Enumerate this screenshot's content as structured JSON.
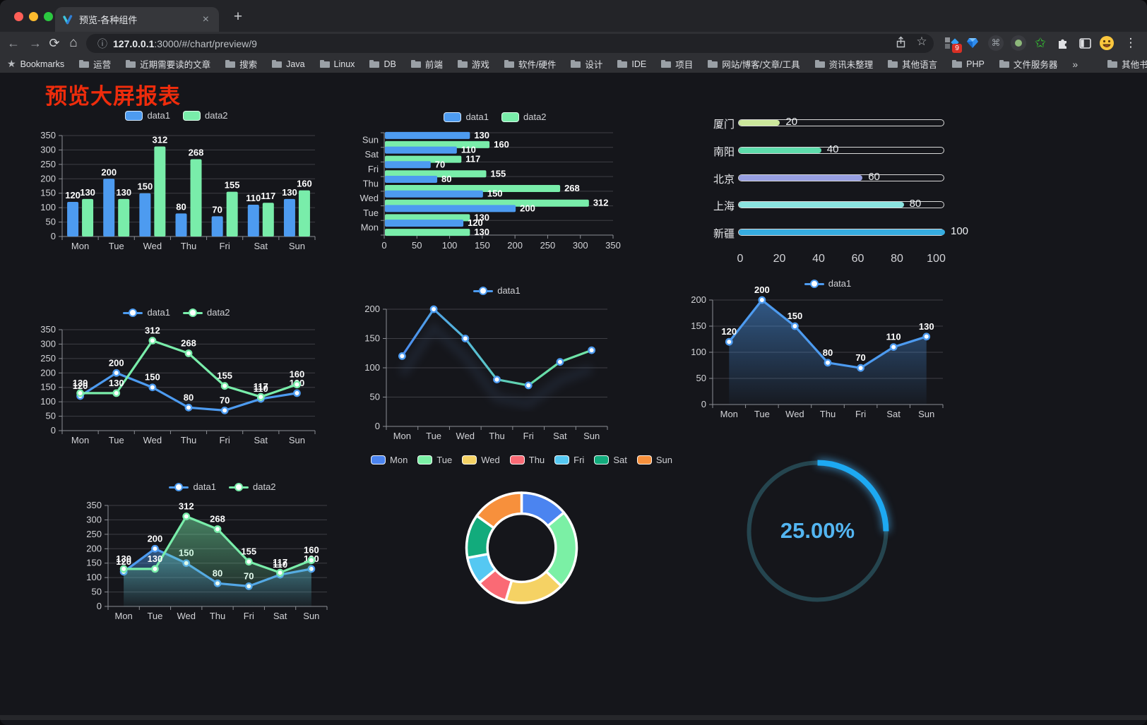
{
  "colors": {
    "data1_blue": "#4d9bf0",
    "data2_green": "#79edaa",
    "grid": "#3e3f45",
    "axis": "#8b8e94",
    "tick_label": "#d2d3d7",
    "value_label": "#ffffff",
    "title_red": "#ee2c0c",
    "gauge_track": "#25454f",
    "gauge_fill": "#1da9f2",
    "gauge_text": "#53b5f1"
  },
  "browser": {
    "tab_title": "预览-各种组件",
    "close_glyph": "×",
    "new_tab_glyph": "+",
    "back_glyph": "←",
    "forward_glyph": "→",
    "reload_glyph": "⟳",
    "home_glyph": "⌂",
    "info_glyph": "ⓘ",
    "url_host": "127.0.0.1",
    "url_rest": ":3000/#/chart/preview/9",
    "star_glyph": "☆",
    "menu_glyph": "⋮",
    "command_glyph": "⌘",
    "green_star_glyph": "✩",
    "extension_badge": "9",
    "bookmarks_star": "★",
    "bookmarks_label": "Bookmarks",
    "bookmark_folders": [
      "运营",
      "近期需要读的文章",
      "搜索",
      "Java",
      "Linux",
      "DB",
      "前端",
      "游戏",
      "软件/硬件",
      "设计",
      "IDE",
      "项目",
      "网站/博客/文章/工具",
      "资讯未整理",
      "其他语言",
      "PHP",
      "文件服务器"
    ],
    "overflow_glyph": "»",
    "other_bookmarks_label": "其他书签"
  },
  "page": {
    "title": "预览大屏报表"
  },
  "chart_data": [
    {
      "id": "bar-grouped",
      "type": "bar",
      "legend_position": "top",
      "value_labels": true,
      "categories": [
        "Mon",
        "Tue",
        "Wed",
        "Thu",
        "Fri",
        "Sat",
        "Sun"
      ],
      "series": [
        {
          "name": "data1",
          "color": "#4d9bf0",
          "values": [
            120,
            200,
            150,
            80,
            70,
            110,
            130
          ]
        },
        {
          "name": "data2",
          "color": "#79edaa",
          "values": [
            130,
            130,
            312,
            268,
            155,
            117,
            160
          ]
        }
      ],
      "ylim": [
        0,
        350
      ],
      "ystep": 50
    },
    {
      "id": "bar-horizontal",
      "type": "bar",
      "orientation": "horizontal",
      "legend_position": "top",
      "value_labels": true,
      "categories_top_to_bottom": [
        "Sun",
        "Sat",
        "Fri",
        "Thu",
        "Wed",
        "Tue",
        "Mon"
      ],
      "series": [
        {
          "name": "data1",
          "color": "#4d9bf0",
          "values_top_to_bottom": [
            130,
            110,
            70,
            80,
            150,
            200,
            120
          ]
        },
        {
          "name": "data2",
          "color": "#79edaa",
          "values_top_to_bottom": [
            160,
            117,
            155,
            268,
            312,
            130,
            130
          ]
        }
      ],
      "xlim": [
        0,
        350
      ],
      "xstep": 50
    },
    {
      "id": "progress-list",
      "type": "bar",
      "orientation": "horizontal-progress",
      "items": [
        {
          "label": "厦门",
          "value": 20,
          "color": "#cbe79b"
        },
        {
          "label": "南阳",
          "value": 40,
          "color": "#5ddcab"
        },
        {
          "label": "北京",
          "value": 60,
          "color": "#979fe2"
        },
        {
          "label": "上海",
          "value": 80,
          "color": "#8ae4e0"
        },
        {
          "label": "新疆",
          "value": 100,
          "color": "#36ace0"
        }
      ],
      "xlim": [
        0,
        100
      ],
      "xticks": [
        0,
        20,
        40,
        60,
        80,
        100
      ]
    },
    {
      "id": "line-two-series",
      "type": "line",
      "legend_position": "top",
      "value_labels": true,
      "categories": [
        "Mon",
        "Tue",
        "Wed",
        "Thu",
        "Fri",
        "Sat",
        "Sun"
      ],
      "series": [
        {
          "name": "data1",
          "color": "#4d9bf0",
          "values": [
            120,
            200,
            150,
            80,
            70,
            110,
            130
          ]
        },
        {
          "name": "data2",
          "color": "#79edaa",
          "values": [
            130,
            130,
            312,
            268,
            155,
            117,
            160
          ]
        }
      ],
      "ylim": [
        0,
        350
      ],
      "ystep": 50
    },
    {
      "id": "line-gradient",
      "type": "line",
      "legend_position": "top",
      "value_labels": false,
      "categories": [
        "Mon",
        "Tue",
        "Wed",
        "Thu",
        "Fri",
        "Sat",
        "Sun"
      ],
      "series": [
        {
          "name": "data1",
          "color": "#4d9bf0",
          "color_gradient": [
            "#4b8bf0",
            "#55b9d9",
            "#63d9a8",
            "#72e6a7"
          ],
          "values": [
            120,
            200,
            150,
            80,
            70,
            110,
            130
          ]
        }
      ],
      "ylim": [
        0,
        200
      ],
      "ystep": 50
    },
    {
      "id": "area-single",
      "type": "area",
      "legend_position": "top",
      "value_labels": true,
      "categories": [
        "Mon",
        "Tue",
        "Wed",
        "Thu",
        "Fri",
        "Sat",
        "Sun"
      ],
      "series": [
        {
          "name": "data1",
          "color": "#4d9bf0",
          "values": [
            120,
            200,
            150,
            80,
            70,
            110,
            130
          ],
          "area": true
        }
      ],
      "ylim": [
        0,
        200
      ],
      "ystep": 50
    },
    {
      "id": "area-two-series",
      "type": "area",
      "legend_position": "top",
      "value_labels": true,
      "categories": [
        "Mon",
        "Tue",
        "Wed",
        "Thu",
        "Fri",
        "Sat",
        "Sun"
      ],
      "series": [
        {
          "name": "data1",
          "color": "#4d9bf0",
          "values": [
            120,
            200,
            150,
            80,
            70,
            110,
            130
          ],
          "area": true
        },
        {
          "name": "data2",
          "color": "#79edaa",
          "values": [
            130,
            130,
            312,
            268,
            155,
            117,
            160
          ],
          "area": true
        }
      ],
      "ylim": [
        0,
        350
      ],
      "ystep": 50
    },
    {
      "id": "donut",
      "type": "pie",
      "inner_radius_ratio": 0.62,
      "legend_position": "top",
      "labels": [
        "Mon",
        "Tue",
        "Wed",
        "Thu",
        "Fri",
        "Sat",
        "Sun"
      ],
      "values": [
        120,
        200,
        150,
        80,
        70,
        110,
        130
      ],
      "colors": [
        "#4b84f0",
        "#7bf0a5",
        "#f5d264",
        "#fa6a75",
        "#55c8f2",
        "#12ab7c",
        "#f7903c"
      ]
    },
    {
      "id": "gauge",
      "type": "gauge",
      "percent": 25,
      "display": "25.00%"
    }
  ]
}
